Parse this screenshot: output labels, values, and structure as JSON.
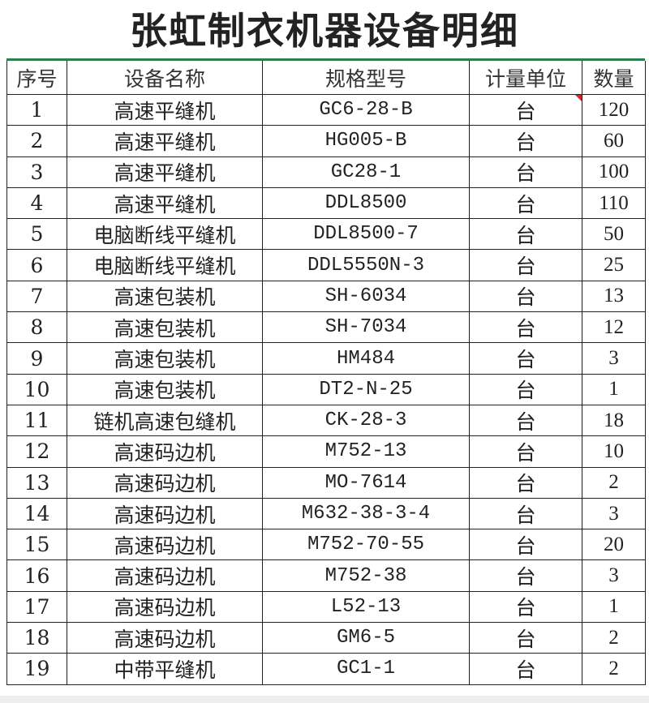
{
  "title": "张虹制衣机器设备明细",
  "headers": [
    "序号",
    "设备名称",
    "规格型号",
    "计量单位",
    "数量"
  ],
  "rows": [
    {
      "no": "1",
      "name": "高速平缝机",
      "model": "GC6-28-B",
      "unit": "台",
      "qty": "120"
    },
    {
      "no": "2",
      "name": "高速平缝机",
      "model": "HG005-B",
      "unit": "台",
      "qty": "60"
    },
    {
      "no": "3",
      "name": "高速平缝机",
      "model": "GC28-1",
      "unit": "台",
      "qty": "100"
    },
    {
      "no": "4",
      "name": "高速平缝机",
      "model": "DDL8500",
      "unit": "台",
      "qty": "110"
    },
    {
      "no": "5",
      "name": "电脑断线平缝机",
      "model": "DDL8500-7",
      "unit": "台",
      "qty": "50"
    },
    {
      "no": "6",
      "name": "电脑断线平缝机",
      "model": "DDL5550N-3",
      "unit": "台",
      "qty": "25"
    },
    {
      "no": "7",
      "name": "高速包装机",
      "model": "SH-6034",
      "unit": "台",
      "qty": "13"
    },
    {
      "no": "8",
      "name": "高速包装机",
      "model": "SH-7034",
      "unit": "台",
      "qty": "12"
    },
    {
      "no": "9",
      "name": "高速包装机",
      "model": "HM484",
      "unit": "台",
      "qty": "3"
    },
    {
      "no": "10",
      "name": "高速包装机",
      "model": "DT2-N-25",
      "unit": "台",
      "qty": "1"
    },
    {
      "no": "11",
      "name": "链机高速包缝机",
      "model": "CK-28-3",
      "unit": "台",
      "qty": "18"
    },
    {
      "no": "12",
      "name": "高速码边机",
      "model": "M752-13",
      "unit": "台",
      "qty": "10"
    },
    {
      "no": "13",
      "name": "高速码边机",
      "model": "MO-7614",
      "unit": "台",
      "qty": "2"
    },
    {
      "no": "14",
      "name": "高速码边机",
      "model": "M632-38-3-4",
      "unit": "台",
      "qty": "3"
    },
    {
      "no": "15",
      "name": "高速码边机",
      "model": "M752-70-55",
      "unit": "台",
      "qty": "20"
    },
    {
      "no": "16",
      "name": "高速码边机",
      "model": "M752-38",
      "unit": "台",
      "qty": "3"
    },
    {
      "no": "17",
      "name": "高速码边机",
      "model": "L52-13",
      "unit": "台",
      "qty": "1"
    },
    {
      "no": "18",
      "name": "高速码边机",
      "model": "GM6-5",
      "unit": "台",
      "qty": "2"
    },
    {
      "no": "19",
      "name": "中带平缝机",
      "model": "GC1-1",
      "unit": "台",
      "qty": "2"
    }
  ],
  "colors": {
    "header_rule": "#2e7d4f",
    "comment_marker": "#dd2222"
  }
}
